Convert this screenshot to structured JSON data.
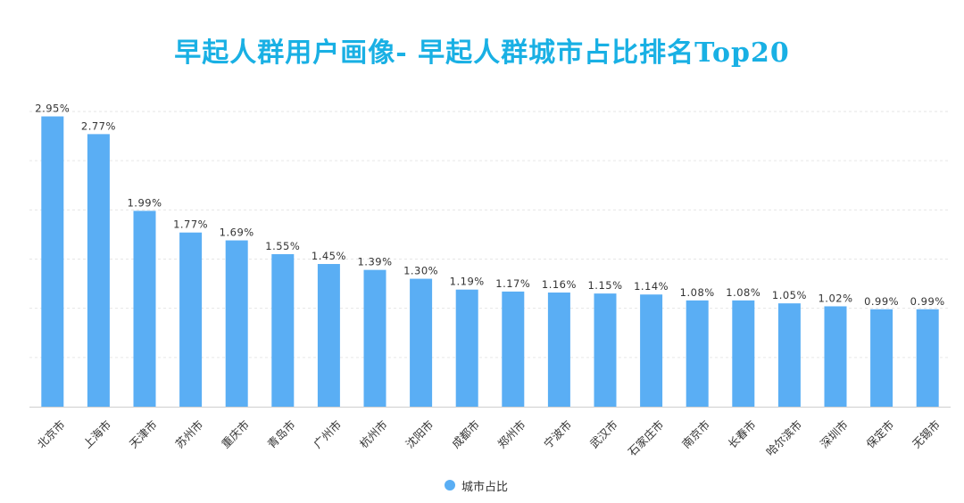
{
  "chart_data": {
    "type": "bar",
    "title": "早起人群用户画像- 早起人群城市占比排名Top20",
    "categories": [
      "北京市",
      "上海市",
      "天津市",
      "苏州市",
      "重庆市",
      "青岛市",
      "广州市",
      "杭州市",
      "沈阳市",
      "成都市",
      "郑州市",
      "宁波市",
      "武汉市",
      "石家庄市",
      "南京市",
      "长春市",
      "哈尔滨市",
      "深圳市",
      "保定市",
      "无锡市"
    ],
    "series": [
      {
        "name": "城市占比",
        "values": [
          2.95,
          2.77,
          1.99,
          1.77,
          1.69,
          1.55,
          1.45,
          1.39,
          1.3,
          1.19,
          1.17,
          1.16,
          1.15,
          1.14,
          1.08,
          1.08,
          1.05,
          1.02,
          0.99,
          0.99
        ],
        "labels": [
          "2.95%",
          "2.77%",
          "1.99%",
          "1.77%",
          "1.69%",
          "1.55%",
          "1.45%",
          "1.39%",
          "1.30%",
          "1.19%",
          "1.17%",
          "1.16%",
          "1.15%",
          "1.14%",
          "1.08%",
          "1.08%",
          "1.05%",
          "1.02%",
          "0.99%",
          "0.99%"
        ]
      }
    ],
    "xlabel": "",
    "ylabel": "",
    "ylim": [
      0,
      3.0
    ],
    "grid": true,
    "legend_position": "bottom-center",
    "colors": {
      "bar": "#5aaef4",
      "title": "#19b0e4",
      "grid": "#e6e6e6",
      "axis": "#cfcfcf",
      "text": "#333333"
    }
  }
}
